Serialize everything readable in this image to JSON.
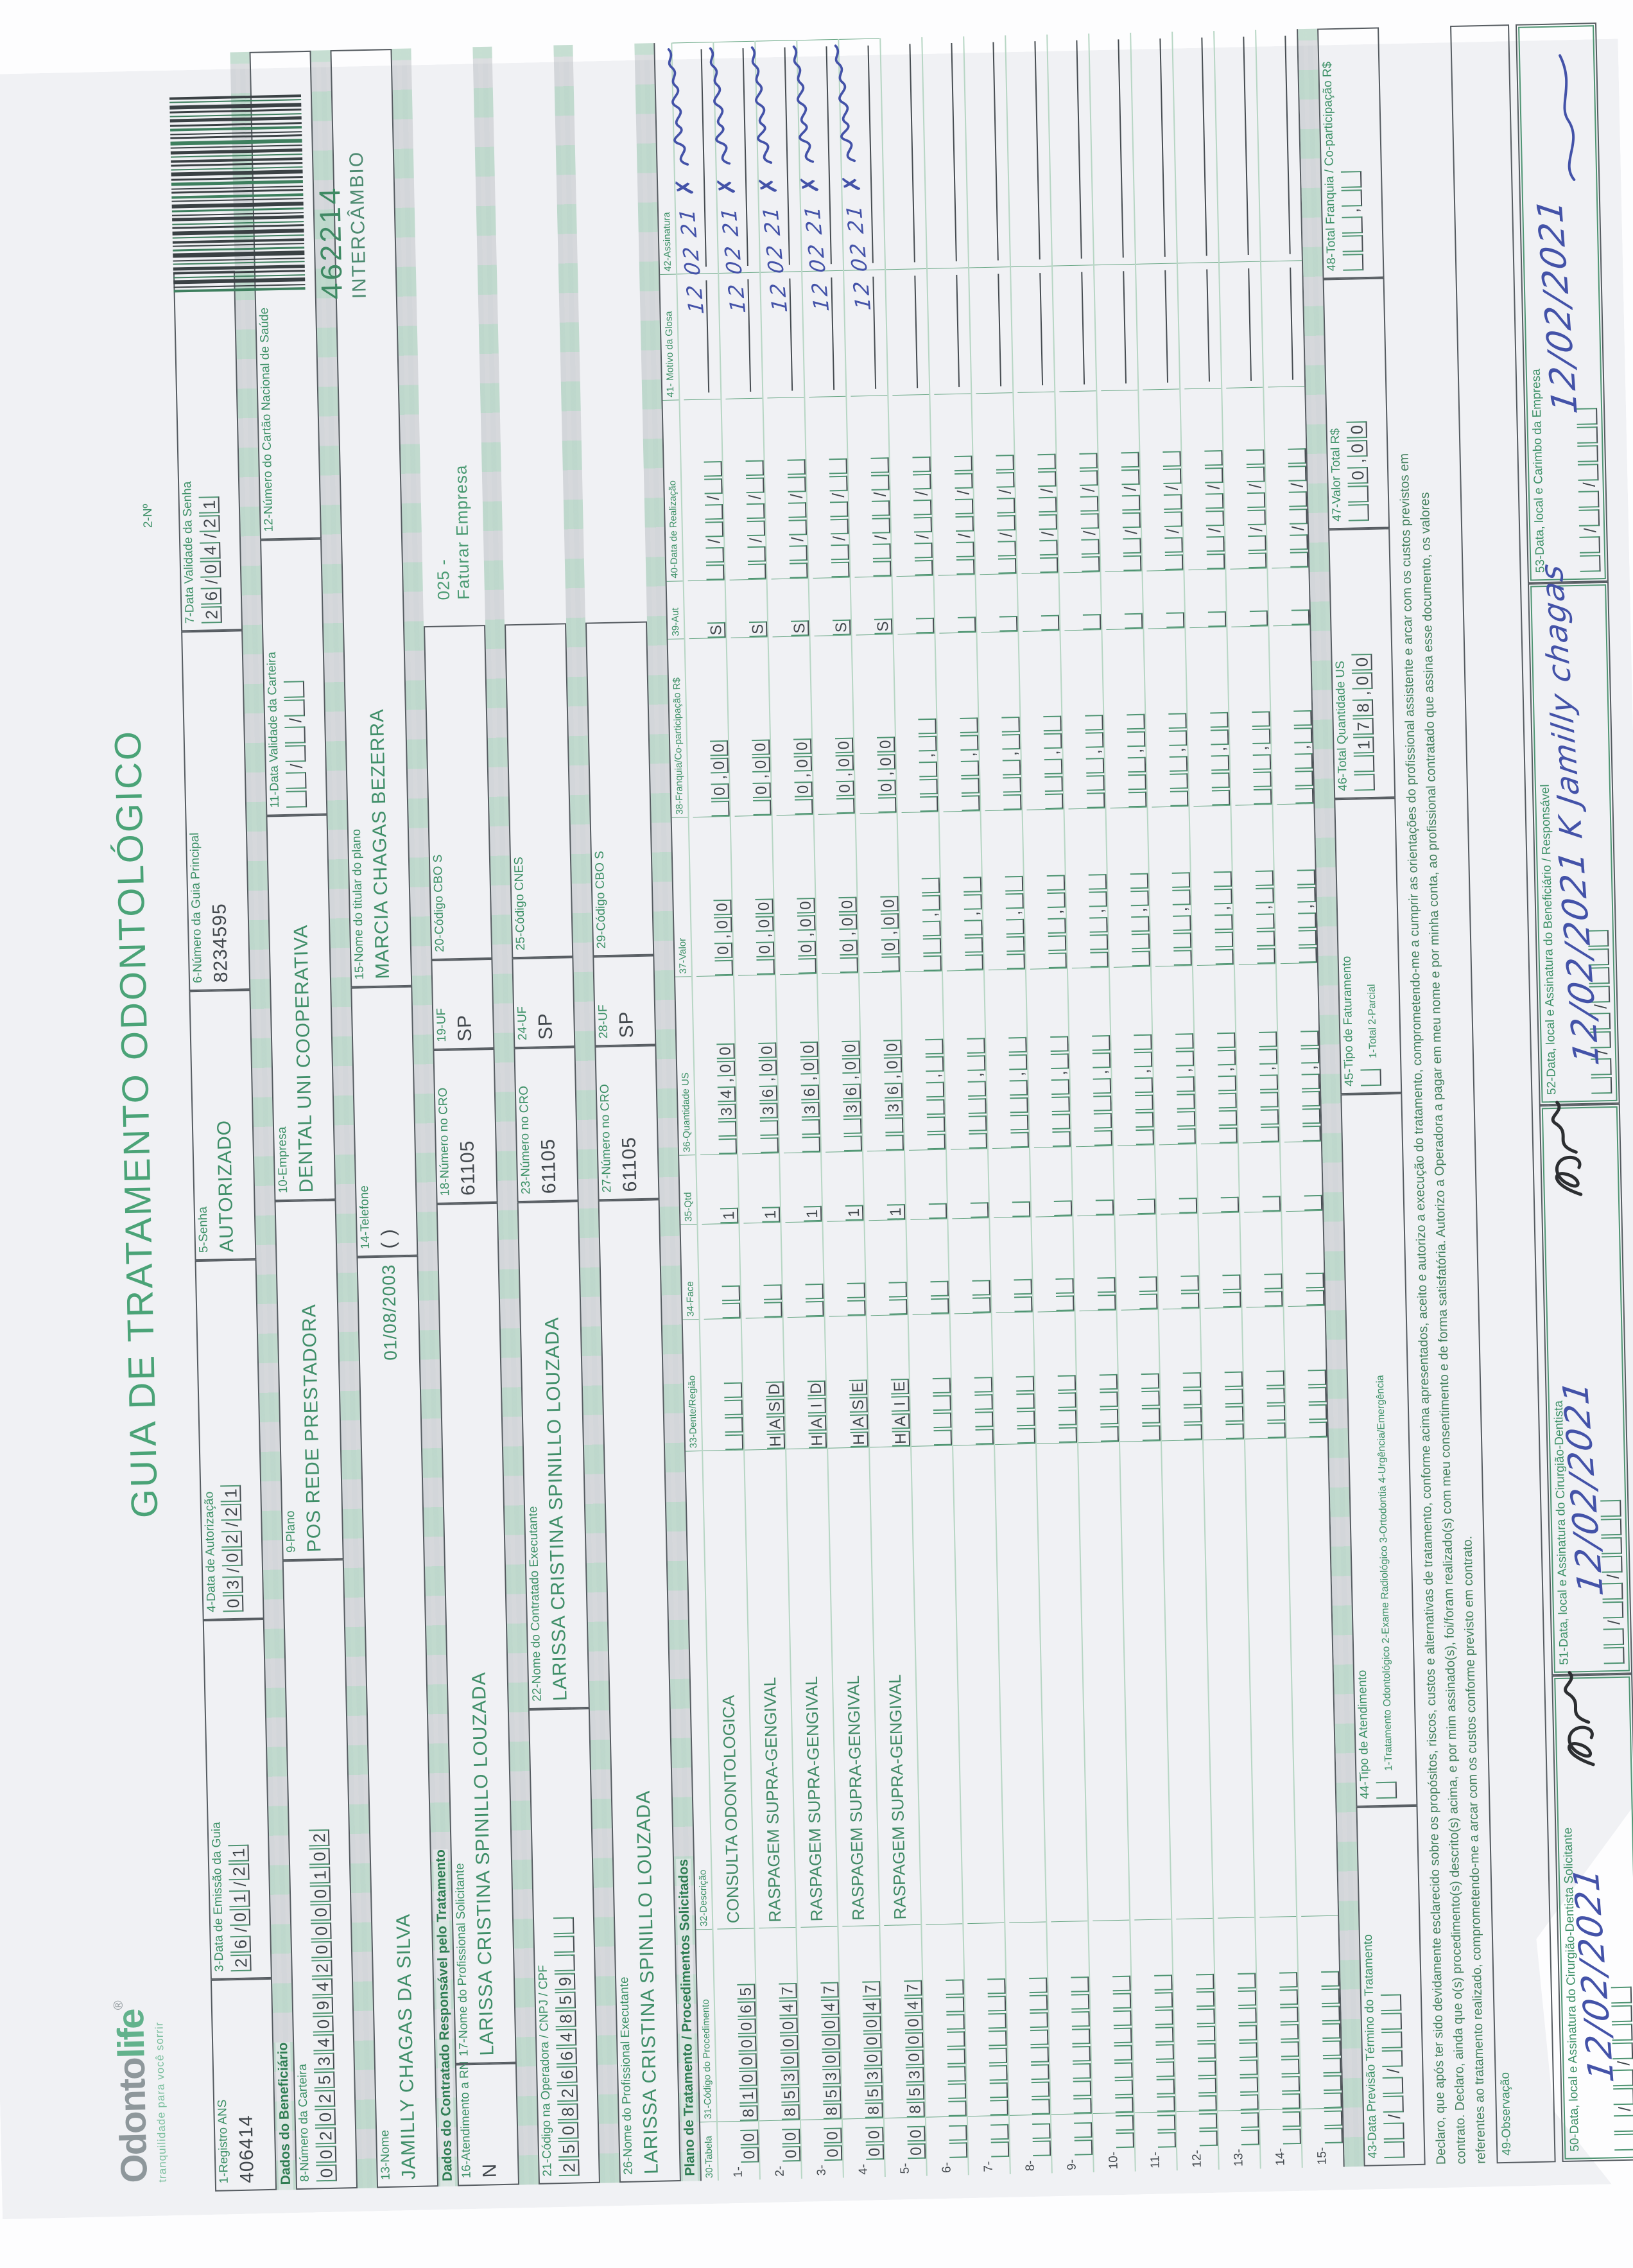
{
  "header": {
    "logo1": "Odonto",
    "logo2": "life",
    "logo_reg": "®",
    "tagline": "tranquilidade para você sorrir",
    "title": "GUIA DE TRATAMENTO ODONTOLÓGICO",
    "n2_label": "2-Nº",
    "guide_number": "462214",
    "guide_type": "INTERCÂMBIO"
  },
  "colors": {
    "form_green": "#4aa377",
    "ink_blue": "#4352a8",
    "ink_black": "#2c2e31",
    "paper": "#f0f1f4"
  },
  "sections": {
    "beneficiario": "Dados do Beneficiário",
    "contratado": "Dados do Contratado Responsável pelo Tratamento",
    "plano": "Plano de Tratamento / Procedimentos Solicitados"
  },
  "fields": {
    "f1": {
      "label": "1-Registro ANS",
      "value": "406414"
    },
    "f3": {
      "label": "3-Data de Emissão da Guia",
      "boxes": "26/01/21"
    },
    "f4": {
      "label": "4-Data de Autorização",
      "boxes": "03/02/21"
    },
    "f5": {
      "label": "5-Senha",
      "value": "AUTORIZADO"
    },
    "f6": {
      "label": "6-Número da Guia Principal",
      "value": "8234595"
    },
    "f7": {
      "label": "7-Data Validade da Senha",
      "boxes": "26/04/21"
    },
    "f8": {
      "label": "8-Número da Carteira",
      "boxes": "0020253409420000102"
    },
    "f9": {
      "label": "9-Plano",
      "value": "POS REDE PRESTADORA"
    },
    "f10": {
      "label": "10-Empresa",
      "value": "DENTAL UNI  COOPERATIVA"
    },
    "f11": {
      "label": "11-Data Validade da Carteira",
      "boxes": "  /  /  "
    },
    "f12": {
      "label": "12-Número do Cartão Nacional de Saúde",
      "value": ""
    },
    "f13": {
      "label": "13-Nome",
      "value": "JAMILLY CHAGAS DA SILVA",
      "extra": "01/08/2003"
    },
    "f14": {
      "label": "14-Telefone",
      "value": "(      )"
    },
    "f15": {
      "label": "15-Nome do titular do plano",
      "value": "MARCIA CHAGAS BEZERRA"
    },
    "f16": {
      "label": "16-Atendimento a RN",
      "value": "N"
    },
    "f17": {
      "label": "17-Nome do Profissional Solicitante",
      "value": "LARISSA CRISTINA SPINILLO LOUZADA"
    },
    "f18": {
      "label": "18-Número no CRO",
      "value": "61105"
    },
    "f19": {
      "label": "19-UF",
      "value": "SP"
    },
    "f20": {
      "label": "20-Código CBO S",
      "value": ""
    },
    "stamp": {
      "line1": "025 -",
      "line2": "Faturar Empresa"
    },
    "f21": {
      "label": "21-Código na Operadora / CNPJ / CPF",
      "boxes": "25082664859   "
    },
    "f22": {
      "label": "22-Nome do Contratado Executante",
      "value": "LARISSA CRISTINA SPINILLO LOUZADA"
    },
    "f23": {
      "label": "23-Número no CRO",
      "value": "61105"
    },
    "f24": {
      "label": "24-UF",
      "value": "SP"
    },
    "f25": {
      "label": "25-Código CNES",
      "value": ""
    },
    "f26": {
      "label": "26-Nome do Profissional Executante",
      "value": "LARISSA CRISTINA SPINILLO LOUZADA"
    },
    "f27": {
      "label": "27-Número no CRO",
      "value": "61105"
    },
    "f28": {
      "label": "28-UF",
      "value": "SP"
    },
    "f29": {
      "label": "29-Código CBO S",
      "value": ""
    },
    "f43": {
      "label": "43-Data Previsão Término do Tratamento",
      "boxes": "  /  /    "
    },
    "f44": {
      "label": "44-Tipo de Atendimento",
      "boxes": " ",
      "options": "1-Tratamento Odontológico  2-Exame Radiológico  3-Ortodontia  4-Urgência/Emergência"
    },
    "f45": {
      "label": "45-Tipo de Faturamento",
      "boxes": " ",
      "options": "1-Total  2-Parcial"
    },
    "f46": {
      "label": "46-Total Quantidade US",
      "boxes": "  178,00"
    },
    "f47": {
      "label": "47-Valor Total R$",
      "boxes": "  0,00"
    },
    "f48": {
      "label": "48-Total Franquia / Co-participação R$",
      "boxes": "   ,  "
    },
    "f49": {
      "label": "49-Observação"
    },
    "f50": {
      "label": "50-Data, local e Assinatura do Cirurgião-Dentista Solicitante",
      "boxes": "  /  /    ",
      "hand_date": "12/02/2021"
    },
    "f51": {
      "label": "51-Data, local e Assinatura do Cirurgião-Dentista",
      "boxes": "  /  /    ",
      "hand_date": "12/02/2021"
    },
    "f52": {
      "label": "52-Data, local e Assinatura do Beneficiário / Responsável",
      "boxes": "  /  /    ",
      "hand_date": "12/02/2021",
      "hand_sig": "K Jamilly chagas"
    },
    "f53": {
      "label": "53-Data, local e Carimbo da Empresa",
      "boxes": "  /  /    ",
      "hand_date": "12/02/2021"
    }
  },
  "declaration": {
    "line1": "Declaro, que após ter sido devidamente esclarecido sobre os propósitos, riscos, custos e alternativas de tratamento, conforme acima apresentados, aceito e autorizo a execução do tratamento, comprometendo-me a cumprir as orientações do profissional assistente e arcar com os custos previstos em",
    "line2": "contrato. Declaro, ainda que o(s) procedimento(s) descrito(s) acima, e por mim assinado(s), foi/foram realizado(s) com meu consentimento e de forma satisfatória. Autorizo a Operadora a pagar em meu nome e por minha conta, ao profissional contratado que assina esse documento, os valores",
    "line3": "referentes ao tratamento realizado, comprometendo-me a arcar com os custos conforme previsto em contrato."
  },
  "table": {
    "headers": [
      "30-Tabela",
      "31-Código do Procedimento",
      "32-Descrição",
      "33-Dente/Região",
      "34-Face",
      "35-Qtd",
      "36-Quantidade US",
      "37-Valor",
      "38-Franquia/Co-participação R$",
      "39-Aut",
      "40-Data de Realização",
      "41- Motivo da Glosa",
      "42-Assinatura"
    ],
    "rows": [
      {
        "n": "1-",
        "tabela": "00",
        "codigo": "81000065",
        "desc": "CONSULTA ODONTOLOGICA",
        "dente": "    ",
        "face": "  ",
        "qtd": "1",
        "us": "  34,00",
        "valor": " 0,00",
        "franquia": " 0,00",
        "aut": "S",
        "data": "  /  /  ",
        "hand": {
          "date": "12 02 21",
          "x": "✗"
        }
      },
      {
        "n": "2-",
        "tabela": "00",
        "codigo": "85300047",
        "desc": "RASPAGEM SUPRA-GENGIVAL",
        "dente": "HASD",
        "face": "  ",
        "qtd": "1",
        "us": "  36,00",
        "valor": " 0,00",
        "franquia": " 0,00",
        "aut": "S",
        "data": "  /  /  ",
        "hand": {
          "date": "12 02 21",
          "x": "✗"
        }
      },
      {
        "n": "3-",
        "tabela": "00",
        "codigo": "85300047",
        "desc": "RASPAGEM SUPRA-GENGIVAL",
        "dente": "HAID",
        "face": "  ",
        "qtd": "1",
        "us": "  36,00",
        "valor": " 0,00",
        "franquia": " 0,00",
        "aut": "S",
        "data": "  /  /  ",
        "hand": {
          "date": "12 02 21",
          "x": "✗"
        }
      },
      {
        "n": "4-",
        "tabela": "00",
        "codigo": "85300047",
        "desc": "RASPAGEM SUPRA-GENGIVAL",
        "dente": "HASE",
        "face": "  ",
        "qtd": "1",
        "us": "  36,00",
        "valor": " 0,00",
        "franquia": " 0,00",
        "aut": "S",
        "data": "  /  /  ",
        "hand": {
          "date": "12 02 21",
          "x": "✗"
        }
      },
      {
        "n": "5-",
        "tabela": "00",
        "codigo": "85300047",
        "desc": "RASPAGEM SUPRA-GENGIVAL",
        "dente": "HAIE",
        "face": "  ",
        "qtd": "1",
        "us": "  36,00",
        "valor": " 0,00",
        "franquia": " 0,00",
        "aut": "S",
        "data": "  /  /  ",
        "hand": {
          "date": "12 02 21",
          "x": "✗"
        }
      },
      {
        "n": "6-",
        "tabela": "  ",
        "codigo": "        ",
        "desc": "",
        "dente": "    ",
        "face": "  ",
        "qtd": " ",
        "us": "    ,  ",
        "valor": "   ,  ",
        "franquia": "   ,  ",
        "aut": " ",
        "data": "  /  /  "
      },
      {
        "n": "7-",
        "tabela": "  ",
        "codigo": "        ",
        "desc": "",
        "dente": "    ",
        "face": "  ",
        "qtd": " ",
        "us": "    ,  ",
        "valor": "   ,  ",
        "franquia": "   ,  ",
        "aut": " ",
        "data": "  /  /  "
      },
      {
        "n": "8-",
        "tabela": "  ",
        "codigo": "        ",
        "desc": "",
        "dente": "    ",
        "face": "  ",
        "qtd": " ",
        "us": "    ,  ",
        "valor": "   ,  ",
        "franquia": "   ,  ",
        "aut": " ",
        "data": "  /  /  "
      },
      {
        "n": "9-",
        "tabela": "  ",
        "codigo": "        ",
        "desc": "",
        "dente": "    ",
        "face": "  ",
        "qtd": " ",
        "us": "    ,  ",
        "valor": "   ,  ",
        "franquia": "   ,  ",
        "aut": " ",
        "data": "  /  /  "
      },
      {
        "n": "10-",
        "tabela": "  ",
        "codigo": "        ",
        "desc": "",
        "dente": "    ",
        "face": "  ",
        "qtd": " ",
        "us": "    ,  ",
        "valor": "   ,  ",
        "franquia": "   ,  ",
        "aut": " ",
        "data": "  /  /  "
      },
      {
        "n": "11-",
        "tabela": "  ",
        "codigo": "        ",
        "desc": "",
        "dente": "    ",
        "face": "  ",
        "qtd": " ",
        "us": "    ,  ",
        "valor": "   ,  ",
        "franquia": "   ,  ",
        "aut": " ",
        "data": "  /  /  "
      },
      {
        "n": "12-",
        "tabela": "  ",
        "codigo": "        ",
        "desc": "",
        "dente": "    ",
        "face": "  ",
        "qtd": " ",
        "us": "    ,  ",
        "valor": "   ,  ",
        "franquia": "   ,  ",
        "aut": " ",
        "data": "  /  /  "
      },
      {
        "n": "13-",
        "tabela": "  ",
        "codigo": "        ",
        "desc": "",
        "dente": "    ",
        "face": "  ",
        "qtd": " ",
        "us": "    ,  ",
        "valor": "   ,  ",
        "franquia": "   ,  ",
        "aut": " ",
        "data": "  /  /  "
      },
      {
        "n": "14-",
        "tabela": "  ",
        "codigo": "        ",
        "desc": "",
        "dente": "    ",
        "face": "  ",
        "qtd": " ",
        "us": "    ,  ",
        "valor": "   ,  ",
        "franquia": "   ,  ",
        "aut": " ",
        "data": "  /  /  "
      },
      {
        "n": "15-",
        "tabela": "  ",
        "codigo": "        ",
        "desc": "",
        "dente": "    ",
        "face": "  ",
        "qtd": " ",
        "us": "    ,  ",
        "valor": "   ,  ",
        "franquia": "   ,  ",
        "aut": " ",
        "data": "  /  /  "
      }
    ]
  }
}
